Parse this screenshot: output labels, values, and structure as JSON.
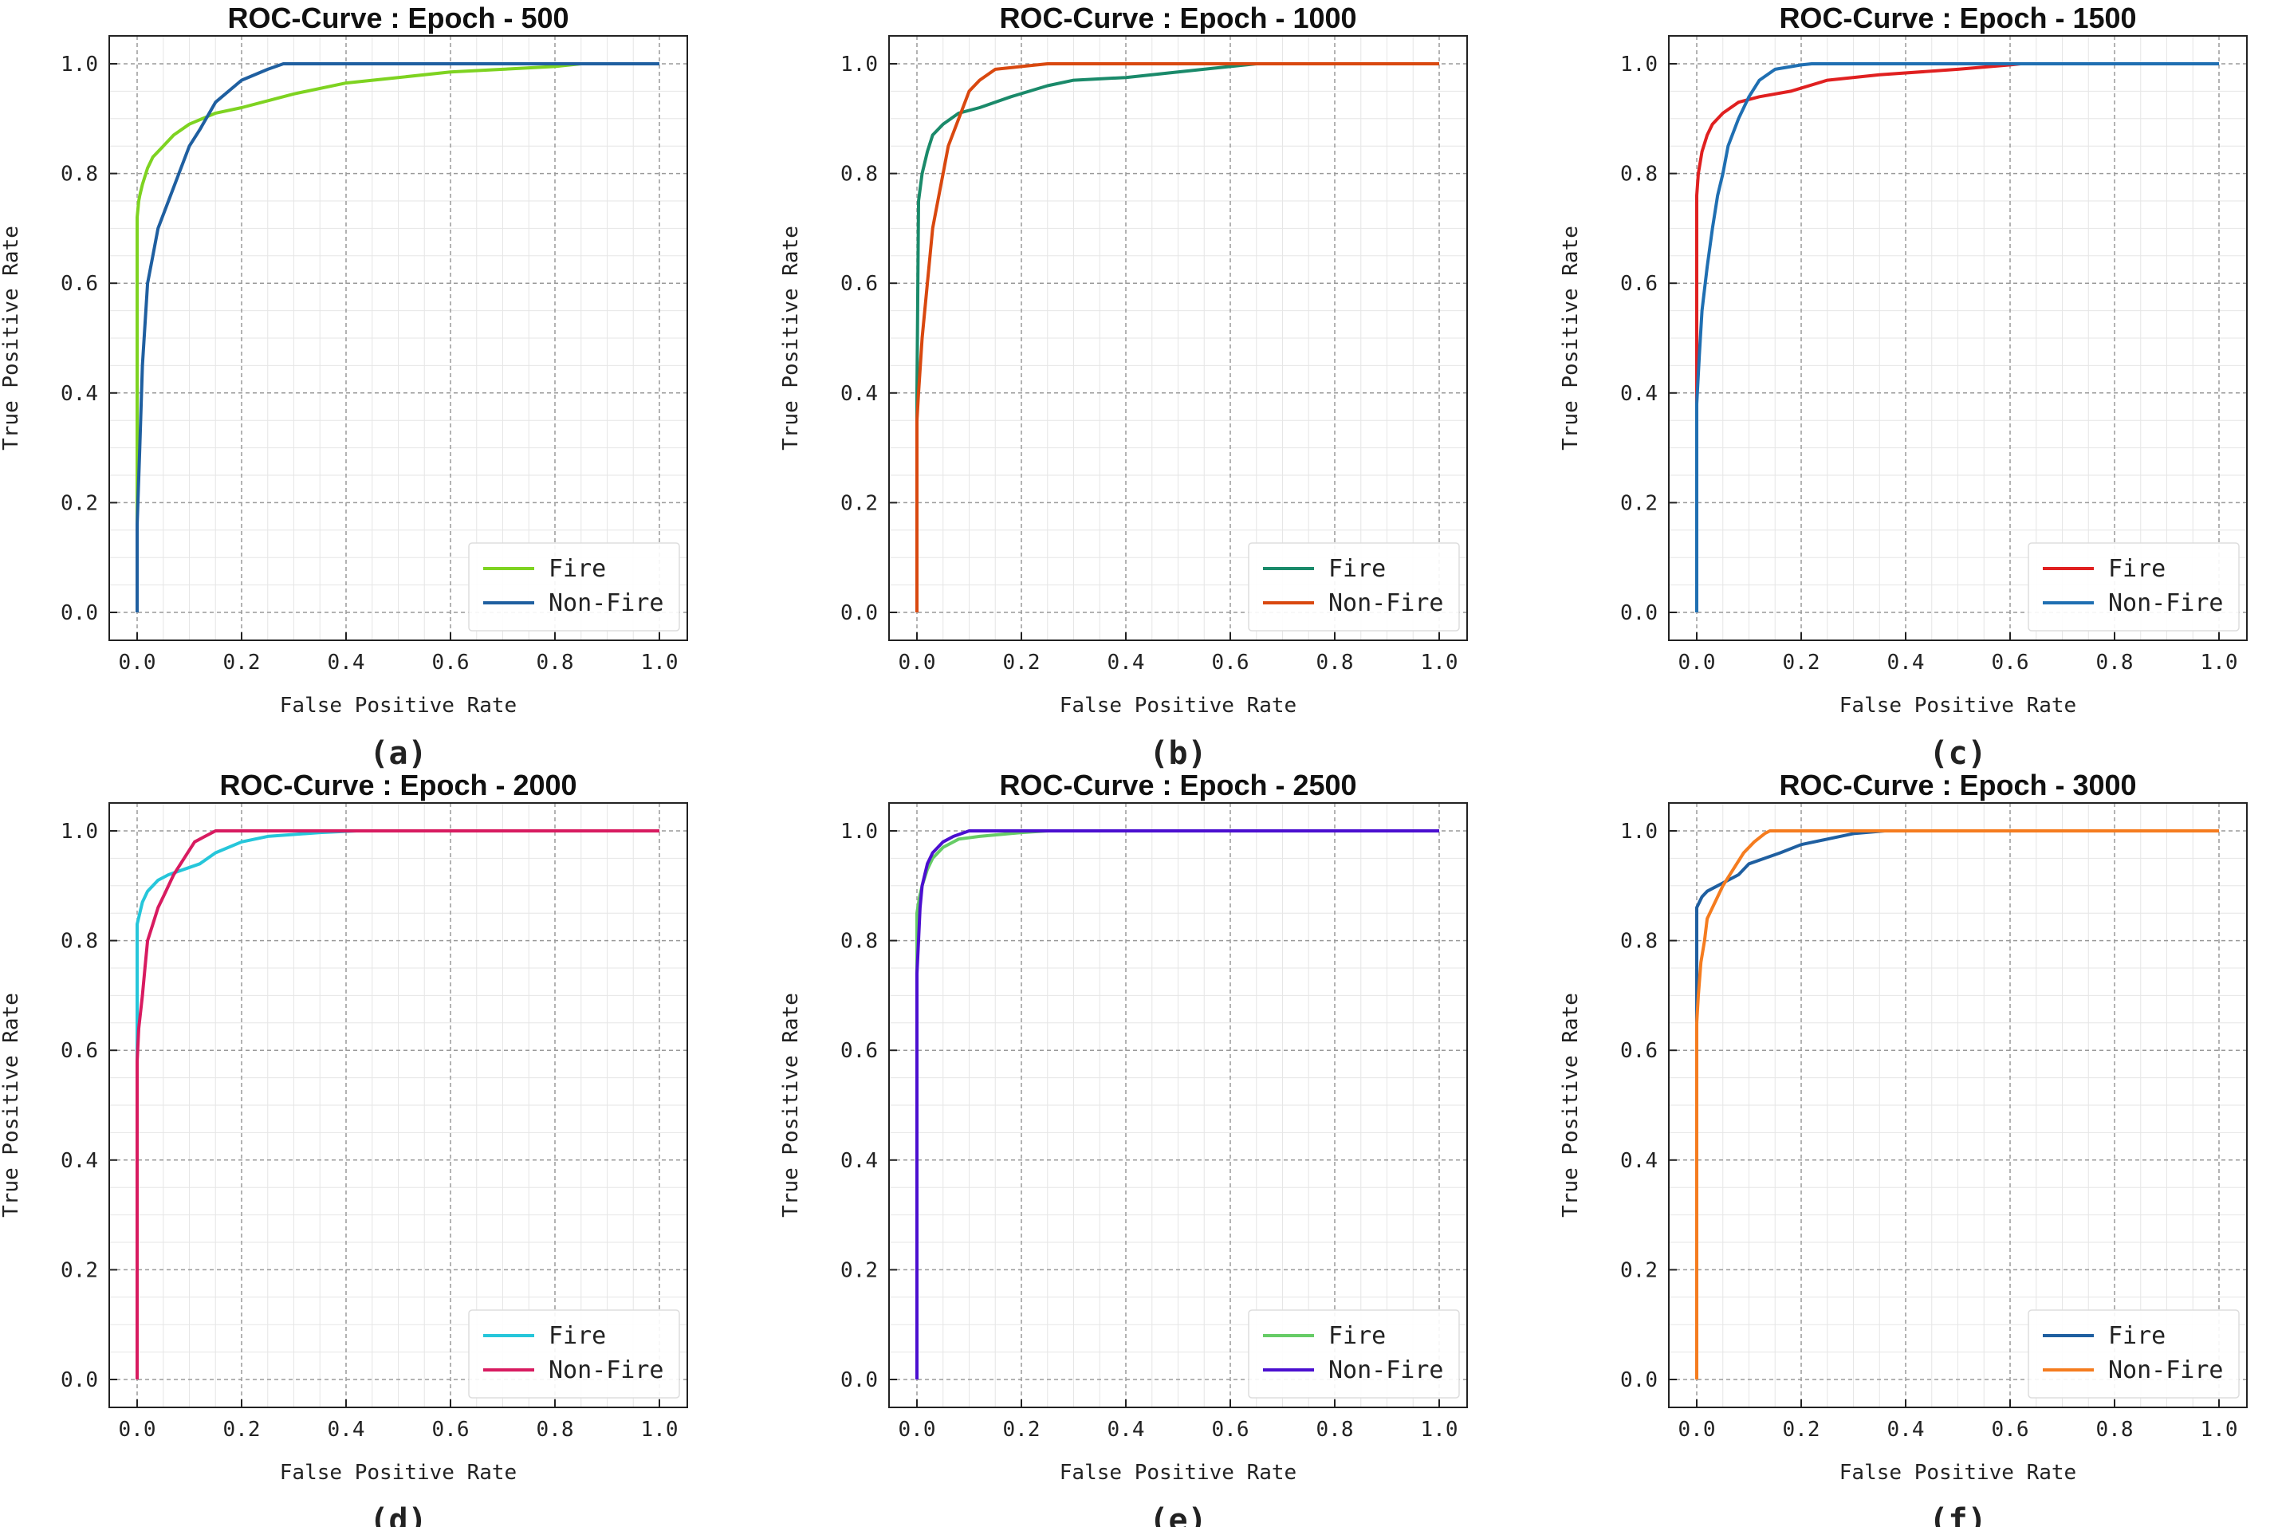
{
  "chart_data": [
    {
      "type": "line",
      "title": "ROC-Curve : Epoch - 500",
      "caption": "(a)",
      "xlabel": "False Positive Rate",
      "ylabel": "True Positive Rate",
      "xlim": [
        0.0,
        1.0
      ],
      "ylim": [
        0.0,
        1.0
      ],
      "xticks": [
        "0.0",
        "0.2",
        "0.4",
        "0.6",
        "0.8",
        "1.0"
      ],
      "yticks": [
        "0.0",
        "0.2",
        "0.4",
        "0.6",
        "0.8",
        "1.0"
      ],
      "grid": true,
      "legend": "lower-right",
      "series": [
        {
          "name": "Fire",
          "color": "#7ed321",
          "x": [
            0,
            0,
            0.003,
            0.005,
            0.01,
            0.02,
            0.03,
            0.05,
            0.07,
            0.1,
            0.15,
            0.2,
            0.3,
            0.4,
            0.5,
            0.6,
            0.7,
            0.8,
            0.85
          ],
          "y": [
            0,
            0.72,
            0.75,
            0.76,
            0.78,
            0.81,
            0.83,
            0.85,
            0.87,
            0.89,
            0.91,
            0.92,
            0.945,
            0.965,
            0.975,
            0.985,
            0.99,
            0.995,
            1.0
          ]
        },
        {
          "name": "Non-Fire",
          "color": "#1f5fa0",
          "x": [
            0,
            0,
            0.005,
            0.01,
            0.02,
            0.03,
            0.04,
            0.06,
            0.08,
            0.1,
            0.12,
            0.15,
            0.2,
            0.25,
            0.28,
            0.5,
            1.0
          ],
          "y": [
            0,
            0.16,
            0.3,
            0.45,
            0.6,
            0.65,
            0.7,
            0.75,
            0.8,
            0.85,
            0.88,
            0.93,
            0.97,
            0.99,
            1.0,
            1.0,
            1.0
          ]
        }
      ]
    },
    {
      "type": "line",
      "title": "ROC-Curve : Epoch - 1000",
      "caption": "(b)",
      "xlabel": "False Positive Rate",
      "ylabel": "True Positive Rate",
      "xlim": [
        0.0,
        1.0
      ],
      "ylim": [
        0.0,
        1.0
      ],
      "xticks": [
        "0.0",
        "0.2",
        "0.4",
        "0.6",
        "0.8",
        "1.0"
      ],
      "yticks": [
        "0.0",
        "0.2",
        "0.4",
        "0.6",
        "0.8",
        "1.0"
      ],
      "grid": true,
      "legend": "lower-right",
      "series": [
        {
          "name": "Fire",
          "color": "#1a8a6a",
          "x": [
            0,
            0,
            0.003,
            0.01,
            0.02,
            0.03,
            0.05,
            0.08,
            0.12,
            0.18,
            0.25,
            0.3,
            0.4,
            0.5,
            0.6,
            0.65
          ],
          "y": [
            0,
            0.4,
            0.75,
            0.8,
            0.84,
            0.87,
            0.89,
            0.91,
            0.92,
            0.94,
            0.96,
            0.97,
            0.975,
            0.985,
            0.995,
            1.0
          ]
        },
        {
          "name": "Non-Fire",
          "color": "#d9480f",
          "x": [
            0,
            0,
            0.003,
            0.01,
            0.02,
            0.03,
            0.04,
            0.05,
            0.06,
            0.08,
            0.1,
            0.12,
            0.15,
            0.2,
            0.25,
            0.5,
            1.0
          ],
          "y": [
            0,
            0.35,
            0.4,
            0.5,
            0.6,
            0.7,
            0.75,
            0.8,
            0.85,
            0.9,
            0.95,
            0.97,
            0.99,
            0.995,
            1.0,
            1.0,
            1.0
          ]
        }
      ]
    },
    {
      "type": "line",
      "title": "ROC-Curve : Epoch - 1500",
      "caption": "(c)",
      "xlabel": "False Positive Rate",
      "ylabel": "True Positive Rate",
      "xlim": [
        0.0,
        1.0
      ],
      "ylim": [
        0.0,
        1.0
      ],
      "xticks": [
        "0.0",
        "0.2",
        "0.4",
        "0.6",
        "0.8",
        "1.0"
      ],
      "yticks": [
        "0.0",
        "0.2",
        "0.4",
        "0.6",
        "0.8",
        "1.0"
      ],
      "grid": true,
      "legend": "lower-right",
      "series": [
        {
          "name": "Fire",
          "color": "#e02020",
          "x": [
            0,
            0,
            0.003,
            0.01,
            0.02,
            0.03,
            0.05,
            0.08,
            0.12,
            0.18,
            0.25,
            0.35,
            0.5,
            0.6,
            0.62
          ],
          "y": [
            0,
            0.76,
            0.8,
            0.84,
            0.87,
            0.89,
            0.91,
            0.93,
            0.94,
            0.95,
            0.97,
            0.98,
            0.99,
            0.998,
            1.0
          ]
        },
        {
          "name": "Non-Fire",
          "color": "#1f6fb2",
          "x": [
            0,
            0,
            0.005,
            0.01,
            0.02,
            0.03,
            0.04,
            0.05,
            0.06,
            0.08,
            0.1,
            0.12,
            0.15,
            0.2,
            0.22,
            0.5,
            1.0
          ],
          "y": [
            0,
            0.38,
            0.47,
            0.55,
            0.63,
            0.7,
            0.76,
            0.8,
            0.85,
            0.9,
            0.94,
            0.97,
            0.99,
            0.998,
            1.0,
            1.0,
            1.0
          ]
        }
      ]
    },
    {
      "type": "line",
      "title": "ROC-Curve : Epoch - 2000",
      "caption": "(d)",
      "xlabel": "False Positive Rate",
      "ylabel": "True Positive Rate",
      "xlim": [
        0.0,
        1.0
      ],
      "ylim": [
        0.0,
        1.0
      ],
      "xticks": [
        "0.0",
        "0.2",
        "0.4",
        "0.6",
        "0.8",
        "1.0"
      ],
      "yticks": [
        "0.0",
        "0.2",
        "0.4",
        "0.6",
        "0.8",
        "1.0"
      ],
      "grid": true,
      "legend": "lower-right",
      "series": [
        {
          "name": "Fire",
          "color": "#26c6da",
          "x": [
            0,
            0,
            0.005,
            0.01,
            0.02,
            0.04,
            0.06,
            0.09,
            0.12,
            0.15,
            0.2,
            0.25,
            0.35,
            0.42
          ],
          "y": [
            0,
            0.83,
            0.85,
            0.87,
            0.89,
            0.91,
            0.92,
            0.93,
            0.94,
            0.96,
            0.98,
            0.99,
            0.997,
            1.0
          ]
        },
        {
          "name": "Non-Fire",
          "color": "#d81b60",
          "x": [
            0,
            0,
            0.003,
            0.01,
            0.015,
            0.02,
            0.03,
            0.04,
            0.05,
            0.07,
            0.09,
            0.11,
            0.13,
            0.15,
            0.5,
            1.0
          ],
          "y": [
            0,
            0.58,
            0.64,
            0.7,
            0.75,
            0.8,
            0.83,
            0.86,
            0.88,
            0.92,
            0.95,
            0.98,
            0.99,
            1.0,
            1.0,
            1.0
          ]
        }
      ]
    },
    {
      "type": "line",
      "title": "ROC-Curve : Epoch - 2500",
      "caption": "(e)",
      "xlabel": "False Positive Rate",
      "ylabel": "True Positive Rate",
      "xlim": [
        0.0,
        1.0
      ],
      "ylim": [
        0.0,
        1.0
      ],
      "xticks": [
        "0.0",
        "0.2",
        "0.4",
        "0.6",
        "0.8",
        "1.0"
      ],
      "yticks": [
        "0.0",
        "0.2",
        "0.4",
        "0.6",
        "0.8",
        "1.0"
      ],
      "grid": true,
      "legend": "lower-right",
      "series": [
        {
          "name": "Fire",
          "color": "#66cc66",
          "x": [
            0,
            0,
            0.005,
            0.01,
            0.02,
            0.03,
            0.05,
            0.08,
            0.12,
            0.2,
            0.25
          ],
          "y": [
            0,
            0.85,
            0.88,
            0.9,
            0.93,
            0.95,
            0.97,
            0.985,
            0.99,
            0.997,
            1.0
          ]
        },
        {
          "name": "Non-Fire",
          "color": "#4b0fd0",
          "x": [
            0,
            0,
            0.003,
            0.006,
            0.01,
            0.015,
            0.02,
            0.03,
            0.05,
            0.07,
            0.1,
            0.5,
            1.0
          ],
          "y": [
            0,
            0.74,
            0.8,
            0.86,
            0.9,
            0.92,
            0.94,
            0.96,
            0.98,
            0.99,
            1.0,
            1.0,
            1.0
          ]
        }
      ]
    },
    {
      "type": "line",
      "title": "ROC-Curve : Epoch - 3000",
      "caption": "(f)",
      "xlabel": "False Positive Rate",
      "ylabel": "True Positive Rate",
      "xlim": [
        0.0,
        1.0
      ],
      "ylim": [
        0.0,
        1.0
      ],
      "xticks": [
        "0.0",
        "0.2",
        "0.4",
        "0.6",
        "0.8",
        "1.0"
      ],
      "yticks": [
        "0.0",
        "0.2",
        "0.4",
        "0.6",
        "0.8",
        "1.0"
      ],
      "grid": true,
      "legend": "lower-right",
      "series": [
        {
          "name": "Fire",
          "color": "#1f5fa0",
          "x": [
            0,
            0,
            0.005,
            0.01,
            0.02,
            0.04,
            0.06,
            0.08,
            0.1,
            0.13,
            0.16,
            0.2,
            0.25,
            0.3,
            0.36
          ],
          "y": [
            0,
            0.86,
            0.87,
            0.88,
            0.89,
            0.9,
            0.91,
            0.92,
            0.94,
            0.95,
            0.96,
            0.975,
            0.985,
            0.995,
            1.0
          ]
        },
        {
          "name": "Non-Fire",
          "color": "#f57c1f",
          "x": [
            0,
            0,
            0.003,
            0.008,
            0.015,
            0.02,
            0.03,
            0.04,
            0.05,
            0.07,
            0.09,
            0.11,
            0.13,
            0.14,
            0.5,
            1.0
          ],
          "y": [
            0,
            0.65,
            0.7,
            0.76,
            0.8,
            0.84,
            0.86,
            0.88,
            0.9,
            0.93,
            0.96,
            0.98,
            0.995,
            1.0,
            1.0,
            1.0
          ]
        }
      ]
    }
  ]
}
